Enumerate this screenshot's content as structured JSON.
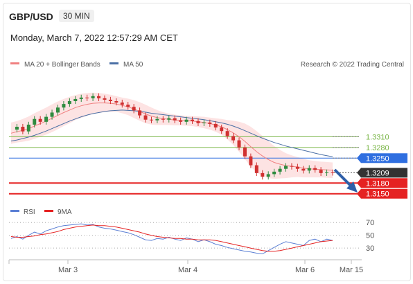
{
  "header": {
    "pair": "GBP/USD",
    "timeframe": "30 MIN",
    "datetime": "Monday, March 7, 2022 12:57:29 AM CET"
  },
  "credit": "Research © 2022 Trading Central",
  "colors": {
    "bollinger_fill": "#fde0e0",
    "ma20": "#f08080",
    "ma50": "#4a6fa5",
    "resistance": "#7ab648",
    "pivot": "#2f6fe0",
    "support": "#e52222",
    "last_price": "#333333",
    "candle_up": "#2e8b3e",
    "candle_down": "#d03030",
    "arrow": "#2f5fa8",
    "rsi": "#5b7fd4",
    "rsi_ma": "#e52222"
  },
  "chart_data": [
    {
      "type": "candlestick",
      "legend": [
        "MA 20 + Bollinger Bands",
        "MA 50"
      ],
      "x_tick_labels": [
        "Mar 3",
        "Mar 4",
        "Mar 6",
        "Mar 15"
      ],
      "ylim": [
        1.313,
        1.348
      ],
      "levels": [
        {
          "label": "1.3310",
          "value": 1.331,
          "kind": "resistance"
        },
        {
          "label": "1.3280",
          "value": 1.328,
          "kind": "resistance"
        },
        {
          "label": "1.3250",
          "value": 1.325,
          "kind": "pivot"
        },
        {
          "label": "1.3209",
          "value": 1.3209,
          "kind": "last_price"
        },
        {
          "label": "1.3180",
          "value": 1.318,
          "kind": "support"
        },
        {
          "label": "1.3150",
          "value": 1.315,
          "kind": "support"
        }
      ],
      "close": [
        1.333,
        1.3338,
        1.3325,
        1.3344,
        1.336,
        1.3352,
        1.3366,
        1.3378,
        1.3392,
        1.3402,
        1.341,
        1.3416,
        1.342,
        1.3418,
        1.3424,
        1.3418,
        1.3414,
        1.341,
        1.3406,
        1.34,
        1.3394,
        1.3384,
        1.337,
        1.3358,
        1.3356,
        1.336,
        1.3358,
        1.3362,
        1.3356,
        1.3352,
        1.3358,
        1.3354,
        1.3348,
        1.335,
        1.3346,
        1.3336,
        1.3326,
        1.3312,
        1.33,
        1.328,
        1.3255,
        1.323,
        1.3208,
        1.3198,
        1.3205,
        1.3212,
        1.322,
        1.3228,
        1.3226,
        1.322,
        1.3215,
        1.3222,
        1.3217,
        1.3208,
        1.321,
        1.3209
      ],
      "ma20": [
        1.332,
        1.3324,
        1.3328,
        1.3333,
        1.334,
        1.3347,
        1.3354,
        1.3362,
        1.337,
        1.3378,
        1.3385,
        1.3392,
        1.3397,
        1.3401,
        1.3404,
        1.3405,
        1.3405,
        1.3404,
        1.3402,
        1.3398,
        1.3394,
        1.3388,
        1.3381,
        1.3374,
        1.3368,
        1.3364,
        1.3361,
        1.3359,
        1.3357,
        1.3356,
        1.3355,
        1.3354,
        1.3352,
        1.335,
        1.3347,
        1.3343,
        1.3338,
        1.333,
        1.3321,
        1.331,
        1.3297,
        1.3282,
        1.3268,
        1.3256,
        1.3246,
        1.3238,
        1.3233,
        1.3229,
        1.3227,
        1.3225,
        1.3222,
        1.322,
        1.3219,
        1.3218,
        1.3217,
        1.3216
      ],
      "ma50": [
        1.3298,
        1.3301,
        1.3305,
        1.3309,
        1.3314,
        1.332,
        1.3326,
        1.3333,
        1.334,
        1.3347,
        1.3354,
        1.336,
        1.3366,
        1.3371,
        1.3375,
        1.3378,
        1.3381,
        1.3383,
        1.3384,
        1.3385,
        1.3384,
        1.3383,
        1.3381,
        1.3379,
        1.3376,
        1.3374,
        1.3372,
        1.337,
        1.3368,
        1.3366,
        1.3364,
        1.3362,
        1.336,
        1.3358,
        1.3355,
        1.3352,
        1.3349,
        1.3345,
        1.334,
        1.3334,
        1.3327,
        1.332,
        1.3313,
        1.3306,
        1.33,
        1.3294,
        1.3289,
        1.3284,
        1.328,
        1.3276,
        1.3272,
        1.3268,
        1.3264,
        1.326,
        1.3257,
        1.3254
      ],
      "bb_width": [
        0.003,
        0.003,
        0.0032,
        0.0034,
        0.0036,
        0.0037,
        0.0038,
        0.0039,
        0.0039,
        0.0038,
        0.0037,
        0.0035,
        0.0034,
        0.0032,
        0.003,
        0.0028,
        0.0026,
        0.0024,
        0.0022,
        0.0022,
        0.0023,
        0.0025,
        0.0026,
        0.0026,
        0.0024,
        0.0021,
        0.0018,
        0.0016,
        0.0015,
        0.0014,
        0.0014,
        0.0014,
        0.0015,
        0.0016,
        0.0017,
        0.0019,
        0.0022,
        0.0027,
        0.0034,
        0.0042,
        0.005,
        0.0056,
        0.0058,
        0.0056,
        0.0052,
        0.0046,
        0.004,
        0.0035,
        0.0031,
        0.0028,
        0.0026,
        0.0024,
        0.0023,
        0.0022,
        0.0022,
        0.0022
      ]
    },
    {
      "type": "line",
      "legend": [
        "RSI",
        "9MA"
      ],
      "y_tick_labels": [
        "70",
        "50",
        "30"
      ],
      "ylim": [
        15,
        80
      ],
      "guides": [
        70,
        50,
        30
      ],
      "rsi": [
        45,
        48,
        44,
        50,
        55,
        52,
        57,
        60,
        63,
        65,
        66,
        67,
        68,
        66,
        67,
        63,
        61,
        60,
        58,
        56,
        54,
        51,
        47,
        43,
        42,
        45,
        44,
        47,
        44,
        42,
        46,
        44,
        40,
        43,
        40,
        36,
        34,
        31,
        29,
        27,
        25,
        24,
        22,
        21,
        26,
        31,
        36,
        40,
        38,
        36,
        34,
        42,
        44,
        40,
        44,
        42
      ],
      "rsi_ma": [
        48,
        47,
        47,
        48,
        49,
        51,
        52,
        54,
        56,
        59,
        61,
        63,
        64,
        65,
        66,
        65,
        65,
        64,
        63,
        61,
        59,
        57,
        55,
        52,
        50,
        48,
        47,
        46,
        45,
        45,
        44,
        44,
        43,
        43,
        43,
        42,
        40,
        38,
        36,
        34,
        32,
        30,
        28,
        26,
        25,
        25,
        26,
        28,
        30,
        32,
        34,
        36,
        38,
        40,
        41,
        42
      ]
    }
  ]
}
